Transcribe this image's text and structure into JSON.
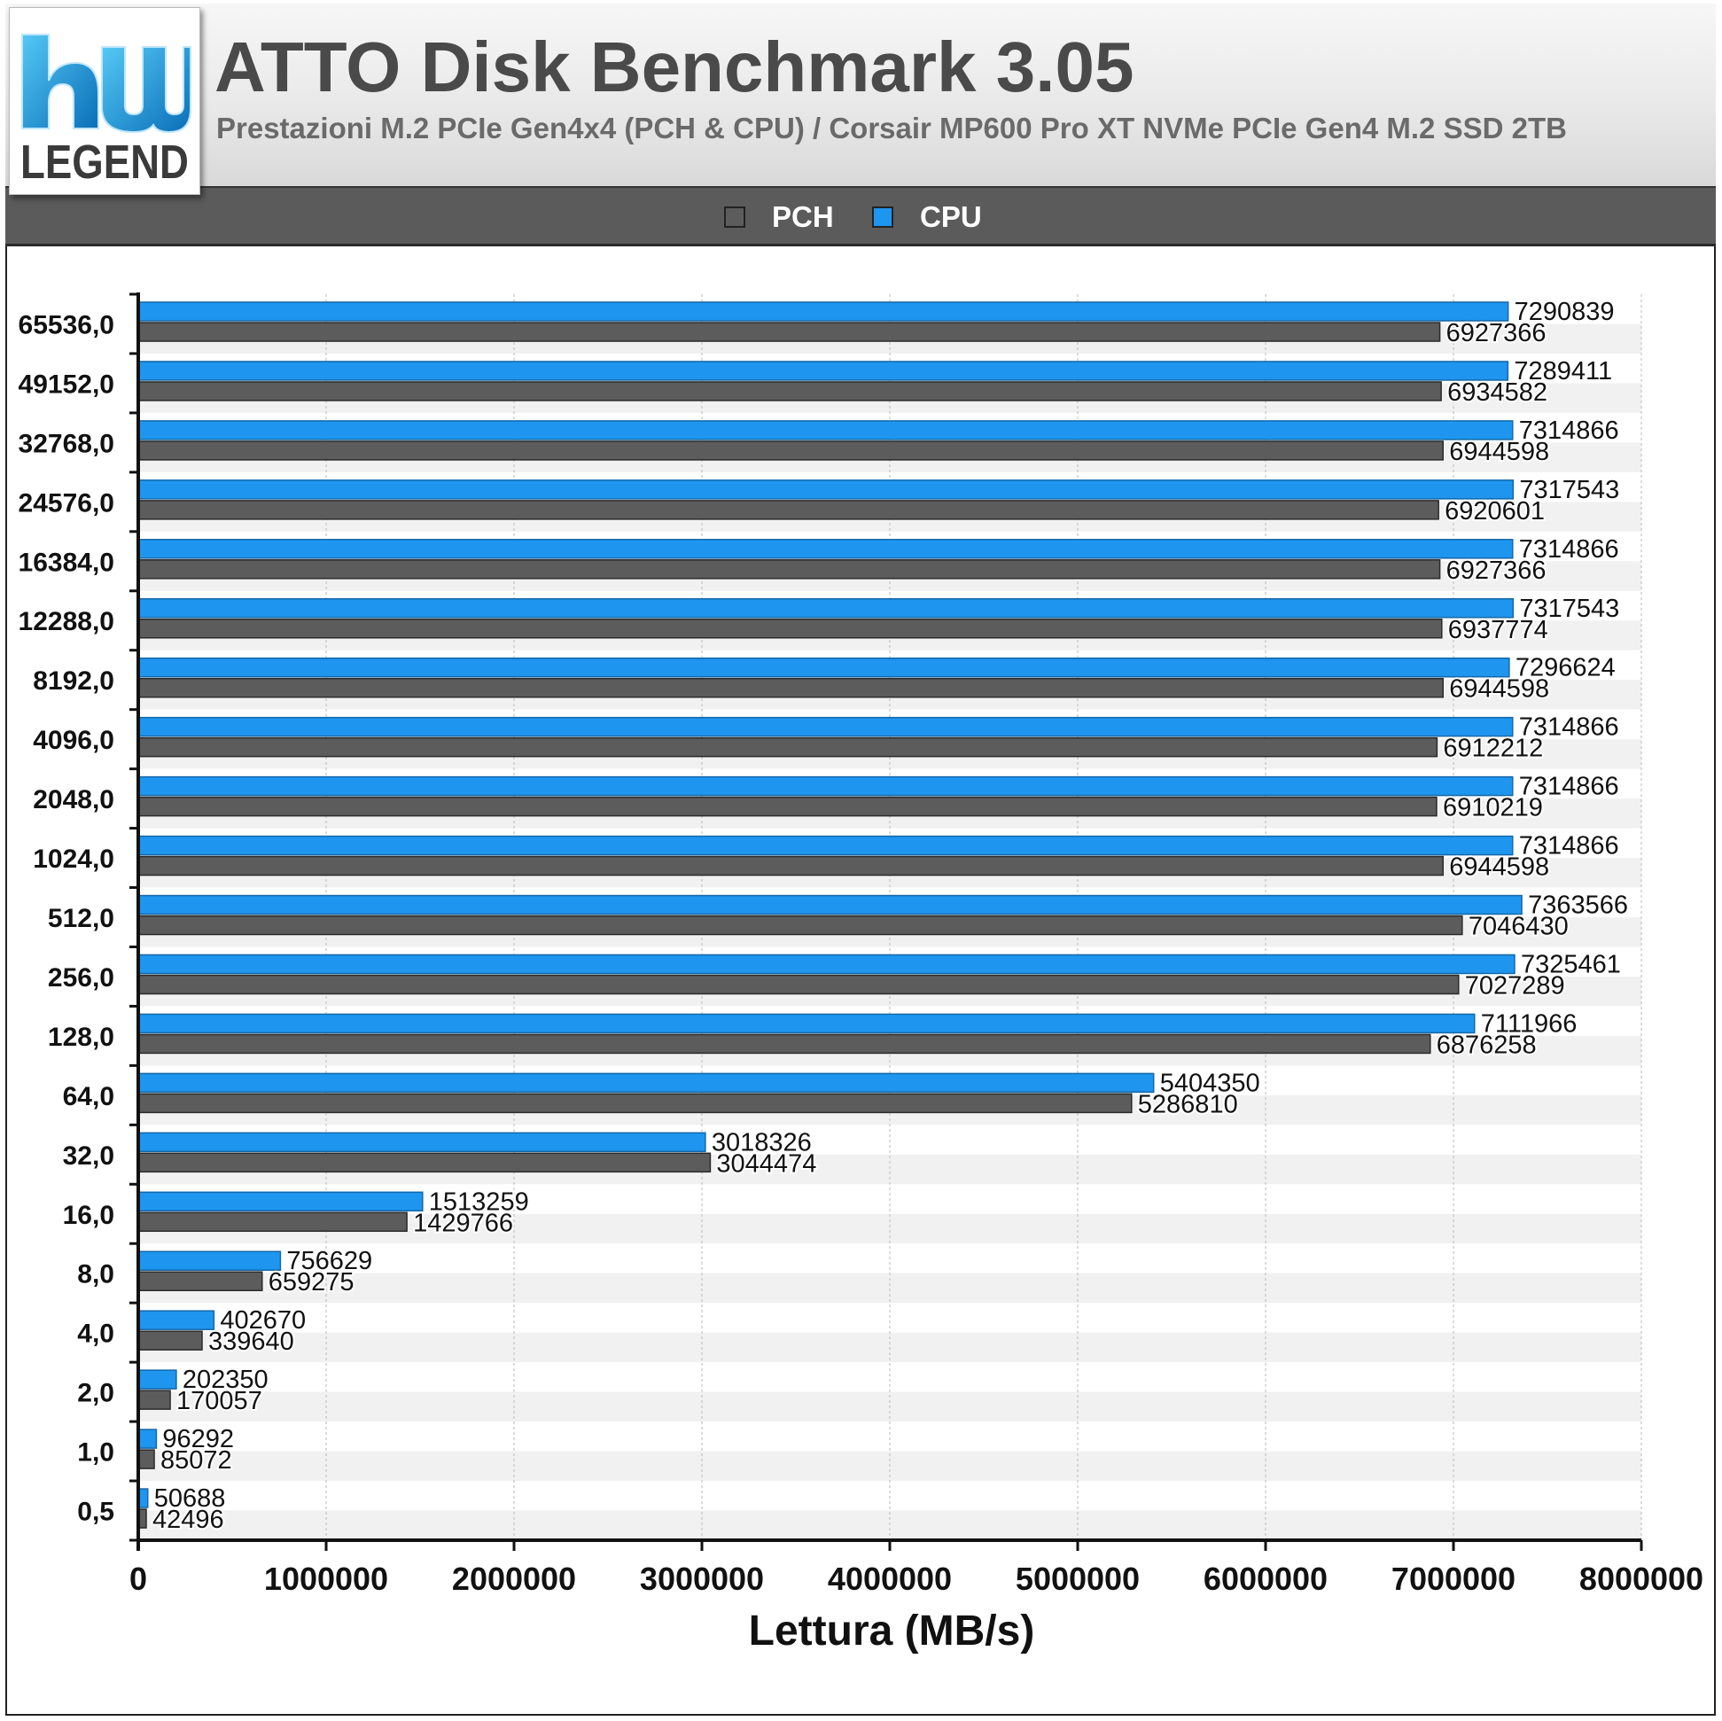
{
  "header": {
    "logo_text": "hw LEGEND",
    "title": "ATTO Disk Benchmark 3.05",
    "subtitle": "Prestazioni M.2 PCIe Gen4x4 (PCH & CPU) / Corsair MP600 Pro XT NVMe PCIe Gen4 M.2 SSD 2TB"
  },
  "legend": {
    "placement": "top-center",
    "items": [
      {
        "label": "PCH",
        "color": "#5c5c5c"
      },
      {
        "label": "CPU",
        "color": "#1e96f0"
      }
    ]
  },
  "chart_data": {
    "type": "bar",
    "orientation": "horizontal",
    "title": "ATTO Disk Benchmark 3.05",
    "subtitle": "Prestazioni M.2 PCIe Gen4x4 (PCH & CPU) / Corsair MP600 Pro XT NVMe PCIe Gen4 M.2 SSD 2TB",
    "xlabel": "Lettura (MB/s)",
    "ylabel": "",
    "xlim": [
      0,
      8000000
    ],
    "xticks": [
      "0",
      "1000000",
      "2000000",
      "3000000",
      "4000000",
      "5000000",
      "6000000",
      "7000000",
      "8000000"
    ],
    "grid": true,
    "categories": [
      "65536,0",
      "49152,0",
      "32768,0",
      "24576,0",
      "16384,0",
      "12288,0",
      "8192,0",
      "4096,0",
      "2048,0",
      "1024,0",
      "512,0",
      "256,0",
      "128,0",
      "64,0",
      "32,0",
      "16,0",
      "8,0",
      "4,0",
      "2,0",
      "1,0",
      "0,5"
    ],
    "series": [
      {
        "name": "CPU",
        "color": "#1e96f0",
        "values": [
          7290839,
          7289411,
          7314866,
          7317543,
          7314866,
          7317543,
          7296624,
          7314866,
          7314866,
          7314866,
          7363566,
          7325461,
          7111966,
          5404350,
          3018326,
          1513259,
          756629,
          402670,
          202350,
          96292,
          50688
        ]
      },
      {
        "name": "PCH",
        "color": "#5c5c5c",
        "values": [
          6927366,
          6934582,
          6944598,
          6920601,
          6927366,
          6937774,
          6944598,
          6912212,
          6910219,
          6944598,
          7046430,
          7027289,
          6876258,
          5286810,
          3044474,
          1429766,
          659275,
          339640,
          170057,
          85072,
          42496
        ]
      }
    ]
  }
}
